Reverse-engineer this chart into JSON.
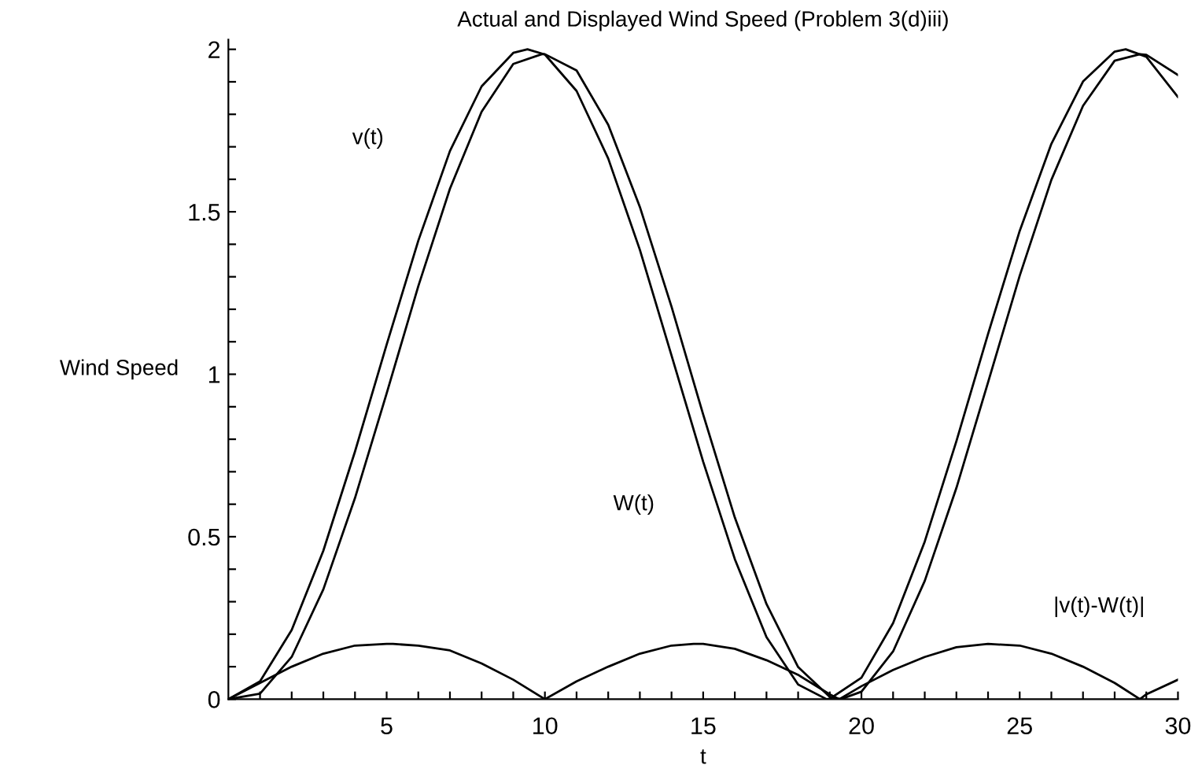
{
  "chart_data": {
    "type": "line",
    "title": "Actual and Displayed Wind Speed (Problem 3(d)iii)",
    "xlabel": "t",
    "ylabel": "Wind Speed",
    "series": [
      {
        "color": "#000000",
        "x": [
          0,
          1,
          2,
          3,
          4,
          5,
          6,
          7,
          8,
          9,
          9.45,
          10,
          11,
          12,
          13,
          14,
          15,
          16,
          17,
          18,
          18.9,
          19,
          20,
          21,
          22,
          23,
          24,
          25,
          26,
          27,
          28,
          28.35,
          29,
          30
        ],
        "values": [
          0,
          0.055,
          0.213,
          0.457,
          0.762,
          1.091,
          1.411,
          1.687,
          1.886,
          1.989,
          2.0,
          1.984,
          1.872,
          1.664,
          1.383,
          1.058,
          0.731,
          0.431,
          0.191,
          0.045,
          0,
          0.001,
          0.066,
          0.234,
          0.485,
          0.794,
          1.124,
          1.441,
          1.709,
          1.901,
          1.993,
          2.0,
          1.977,
          1.853
        ]
      },
      {
        "color": "#000000",
        "x": [
          0,
          1,
          2,
          3,
          4,
          5,
          6,
          7,
          8,
          9,
          9.9,
          10,
          11,
          12,
          13,
          14,
          15,
          16,
          17,
          18,
          19,
          19.35,
          20,
          21,
          22,
          23,
          24,
          25,
          26,
          27,
          28,
          28.8,
          29,
          30
        ],
        "values": [
          0,
          0.017,
          0.13,
          0.338,
          0.619,
          0.941,
          1.271,
          1.571,
          1.808,
          1.955,
          1.985,
          1.985,
          1.935,
          1.768,
          1.515,
          1.208,
          0.876,
          0.559,
          0.293,
          0.099,
          0.007,
          0,
          0.023,
          0.147,
          0.364,
          0.65,
          0.975,
          1.303,
          1.598,
          1.826,
          1.965,
          1.985,
          1.983,
          1.921
        ]
      },
      {
        "color": "#000000",
        "x": [
          0,
          1,
          2,
          3,
          4,
          5,
          5.2,
          6,
          7,
          8,
          9,
          10,
          11,
          12,
          13,
          14,
          14.7,
          15,
          16,
          17,
          18,
          19,
          19.3,
          20,
          21,
          22,
          23,
          24,
          25,
          26,
          27,
          28,
          28.8,
          29,
          30
        ],
        "values": [
          0,
          0.05,
          0.1,
          0.14,
          0.165,
          0.17,
          0.17,
          0.165,
          0.15,
          0.11,
          0.06,
          0,
          0.055,
          0.1,
          0.14,
          0.165,
          0.17,
          0.17,
          0.155,
          0.12,
          0.075,
          0.015,
          0,
          0.04,
          0.09,
          0.13,
          0.16,
          0.17,
          0.165,
          0.14,
          0.1,
          0.05,
          0,
          0.015,
          0.06
        ]
      }
    ],
    "annotations": [
      "v(t)",
      "W(t)",
      "|v(t)-W(t)|"
    ],
    "xlim": [
      0,
      30
    ],
    "ylim": [
      0,
      2.03
    ],
    "xticks": [
      {
        "value": 1,
        "label": null
      },
      {
        "value": 2,
        "label": null
      },
      {
        "value": 3,
        "label": null
      },
      {
        "value": 4,
        "label": null
      },
      5,
      {
        "value": 6,
        "label": null
      },
      {
        "value": 7,
        "label": null
      },
      {
        "value": 8,
        "label": null
      },
      {
        "value": 9,
        "label": null
      },
      10,
      {
        "value": 11,
        "label": null
      },
      {
        "value": 12,
        "label": null
      },
      {
        "value": 13,
        "label": null
      },
      {
        "value": 14,
        "label": null
      },
      15,
      {
        "value": 16,
        "label": null
      },
      {
        "value": 17,
        "label": null
      },
      {
        "value": 18,
        "label": null
      },
      {
        "value": 19,
        "label": null
      },
      20,
      {
        "value": 21,
        "label": null
      },
      {
        "value": 22,
        "label": null
      },
      {
        "value": 23,
        "label": null
      },
      {
        "value": 24,
        "label": null
      },
      25,
      {
        "value": 26,
        "label": null
      },
      {
        "value": 27,
        "label": null
      },
      {
        "value": 28,
        "label": null
      },
      {
        "value": 29,
        "label": null
      },
      30
    ],
    "yticks": [
      0,
      {
        "value": 0.1,
        "label": null
      },
      {
        "value": 0.2,
        "label": null
      },
      {
        "value": 0.3,
        "label": null
      },
      {
        "value": 0.4,
        "label": null
      },
      0.5,
      {
        "value": 0.6,
        "label": null
      },
      {
        "value": 0.7,
        "label": null
      },
      {
        "value": 0.8,
        "label": null
      },
      {
        "value": 0.9,
        "label": null
      },
      1,
      {
        "value": 1.1,
        "label": null
      },
      {
        "value": 1.2,
        "label": null
      },
      {
        "value": 1.3,
        "label": null
      },
      {
        "value": 1.4,
        "label": null
      },
      1.5,
      {
        "value": 1.6,
        "label": null
      },
      {
        "value": 1.7,
        "label": null
      },
      {
        "value": 1.8,
        "label": null
      },
      {
        "value": 1.9,
        "label": null
      },
      2
    ],
    "grid": false,
    "legend": false,
    "marker": "none",
    "line_style": "solid"
  }
}
